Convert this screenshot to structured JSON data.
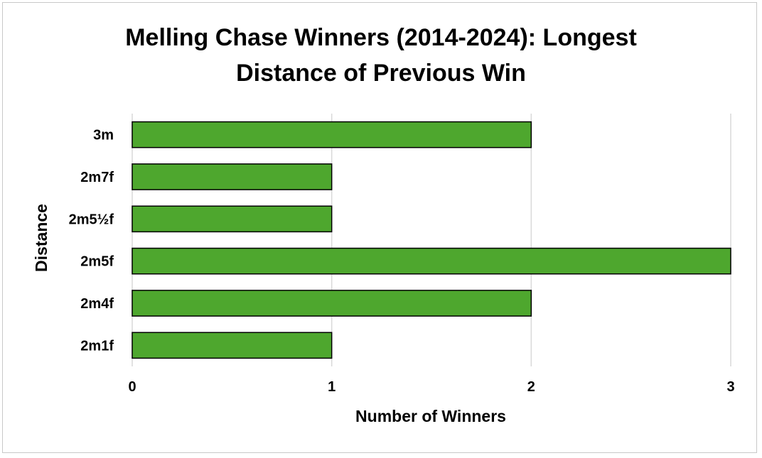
{
  "chart_data": {
    "type": "bar",
    "orientation": "horizontal",
    "title_lines": [
      "Melling Chase Winners (2014-2024): Longest",
      "Distance of Previous Win"
    ],
    "xlabel": "Number of Winners",
    "ylabel": "Distance",
    "categories": [
      "3m",
      "2m7f",
      "2m5½f",
      "2m5f",
      "2m4f",
      "2m1f"
    ],
    "values": [
      2,
      1,
      1,
      3,
      2,
      1
    ],
    "xlim": [
      0,
      3
    ],
    "xticks": [
      0,
      1,
      2,
      3
    ],
    "grid": "vertical",
    "legend": "none",
    "bar_color": "#4ea72e",
    "bar_edge_color": "#000000",
    "grid_color": "#d9d9d9"
  }
}
